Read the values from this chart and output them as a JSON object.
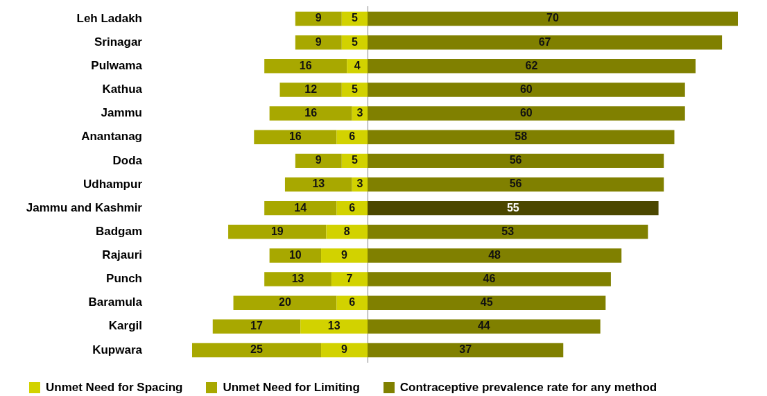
{
  "chart_data": [
    {
      "type": "bar",
      "orientation": "horizontal",
      "stacked": true,
      "data_labels": true,
      "legend": "bottom",
      "tick_labels": "y",
      "xlim": [
        34,
        0
      ],
      "categories": [
        "Leh Ladakh",
        "Srinagar",
        "Pulwama",
        "Kathua",
        "Jammu",
        "Anantanag",
        "Doda",
        "Udhampur",
        "Jammu and Kashmir",
        "Badgam",
        "Rajauri",
        "Punch",
        "Baramula",
        "Kargil",
        "Kupwara"
      ],
      "series": [
        {
          "name": "Unmet Need for Spacing",
          "color": "#d2d200",
          "values": [
            5,
            5,
            4,
            5,
            3,
            6,
            5,
            3,
            6,
            8,
            9,
            7,
            6,
            13,
            9
          ]
        },
        {
          "name": "Unmet Need for Limiting",
          "color": "#a8a800",
          "values": [
            9,
            9,
            16,
            12,
            16,
            16,
            9,
            13,
            14,
            19,
            10,
            13,
            20,
            17,
            25
          ]
        }
      ]
    },
    {
      "type": "bar",
      "orientation": "horizontal",
      "data_labels": true,
      "legend": "bottom",
      "tick_labels": false,
      "categories": [
        null,
        null,
        null,
        null,
        null,
        null,
        null,
        null,
        null,
        null,
        null,
        null,
        null,
        null,
        null
      ],
      "series": [
        {
          "name": "Contraceptive prevalence rate for any method",
          "color": "#808000",
          "colors": [
            "#808000",
            "#808000",
            "#808000",
            "#808000",
            "#808000",
            "#808000",
            "#808000",
            "#808000",
            "#4b4700",
            "#808000",
            "#808000",
            "#808000",
            "#808000",
            "#808000",
            "#808000"
          ],
          "values": [
            70,
            67,
            62,
            60,
            60,
            58,
            56,
            56,
            55,
            53,
            48,
            46,
            45,
            44,
            37
          ]
        }
      ]
    }
  ]
}
